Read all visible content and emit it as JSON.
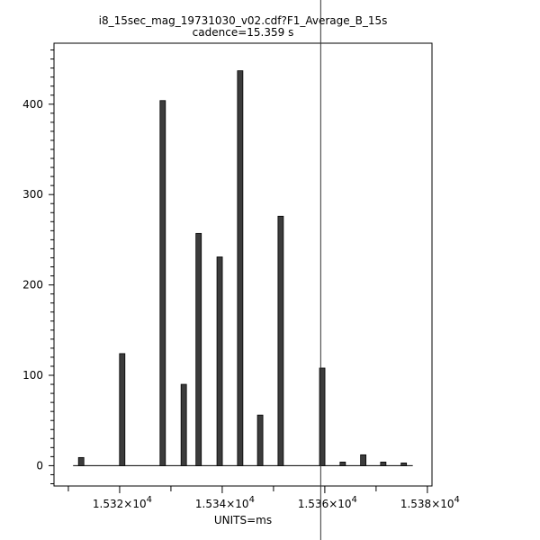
{
  "chart_data": {
    "type": "bar",
    "title": "i8_15sec_mag_19731030_v02.cdf?F1_Average_B_15s",
    "subtitle": "cadence=15.359 s",
    "xlabel": "UNITS=ms",
    "ylabel": "",
    "x": [
      15312.5,
      15320.5,
      15328.4,
      15332.5,
      15335.4,
      15339.5,
      15343.5,
      15347.4,
      15351.4,
      15359.5,
      15363.5,
      15367.5,
      15371.4,
      15375.4
    ],
    "values": [
      9,
      124,
      404,
      90,
      257,
      231,
      437,
      56,
      276,
      108,
      4,
      12,
      4,
      3
    ],
    "xlim": [
      15307.2,
      15380.9
    ],
    "ylim": [
      -22.5,
      467.5
    ],
    "yticks": [
      "0",
      "100",
      "200",
      "300",
      "400"
    ],
    "xticks": [
      {
        "value": 15320,
        "mantissa": "1.532",
        "exp": "4"
      },
      {
        "value": 15340,
        "mantissa": "1.534",
        "exp": "4"
      },
      {
        "value": 15360,
        "mantissa": "1.536",
        "exp": "4"
      },
      {
        "value": 15380,
        "mantissa": "1.538",
        "exp": "4"
      }
    ],
    "cursor_x": 15359.2,
    "bar_color": "#3c3c3c",
    "grid": false
  }
}
